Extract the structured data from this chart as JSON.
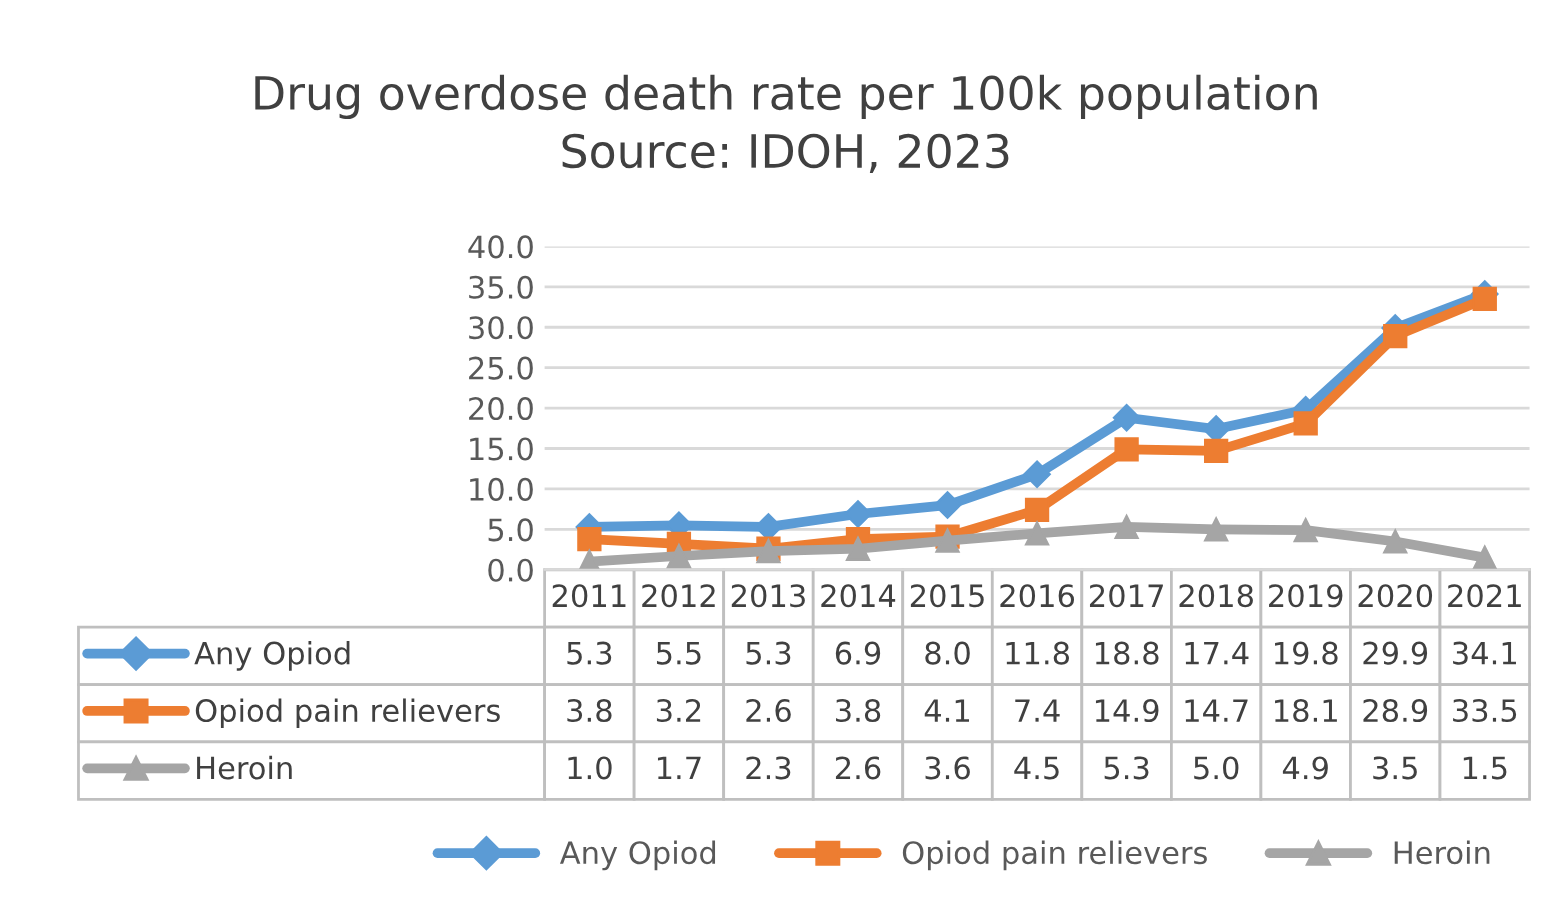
{
  "chart_data": {
    "type": "line",
    "title": "Drug overdose death rate per 100k population",
    "annotations": [
      "Source: IDOH, 2023"
    ],
    "categories": [
      "2011",
      "2012",
      "2013",
      "2014",
      "2015",
      "2016",
      "2017",
      "2018",
      "2019",
      "2020",
      "2021"
    ],
    "series": [
      {
        "name": "Any Opiod",
        "color": "#5b9bd5",
        "marker": "diamond",
        "values": [
          5.3,
          5.5,
          5.3,
          6.9,
          8.0,
          11.8,
          18.8,
          17.4,
          19.8,
          29.9,
          34.1
        ],
        "value_labels": [
          "5.3",
          "5.5",
          "5.3",
          "6.9",
          "8.0",
          "11.8",
          "18.8",
          "17.4",
          "19.8",
          "29.9",
          "34.1"
        ]
      },
      {
        "name": "Opiod pain relievers",
        "color": "#ed7d31",
        "marker": "square",
        "values": [
          3.8,
          3.2,
          2.6,
          3.8,
          4.1,
          7.4,
          14.9,
          14.7,
          18.1,
          28.9,
          33.5
        ],
        "value_labels": [
          "3.8",
          "3.2",
          "2.6",
          "3.8",
          "4.1",
          "7.4",
          "14.9",
          "14.7",
          "18.1",
          "28.9",
          "33.5"
        ]
      },
      {
        "name": "Heroin",
        "color": "#a5a5a5",
        "marker": "triangle",
        "values": [
          1.0,
          1.7,
          2.3,
          2.6,
          3.6,
          4.5,
          5.3,
          5.0,
          4.9,
          3.5,
          1.5
        ],
        "value_labels": [
          "1.0",
          "1.7",
          "2.3",
          "2.6",
          "3.6",
          "4.5",
          "5.3",
          "5.0",
          "4.9",
          "3.5",
          "1.5"
        ]
      }
    ],
    "ylim": [
      0,
      40
    ],
    "yticks": [
      {
        "value": 0,
        "label": "0.0"
      },
      {
        "value": 5,
        "label": "5.0"
      },
      {
        "value": 10,
        "label": "10.0"
      },
      {
        "value": 15,
        "label": "15.0"
      },
      {
        "value": 20,
        "label": "20.0"
      },
      {
        "value": 25,
        "label": "25.0"
      },
      {
        "value": 30,
        "label": "30.0"
      },
      {
        "value": 35,
        "label": "35.0"
      },
      {
        "value": 40,
        "label": "40.0"
      }
    ],
    "grid": "y",
    "legend": "bottom",
    "line_style": "solid"
  }
}
